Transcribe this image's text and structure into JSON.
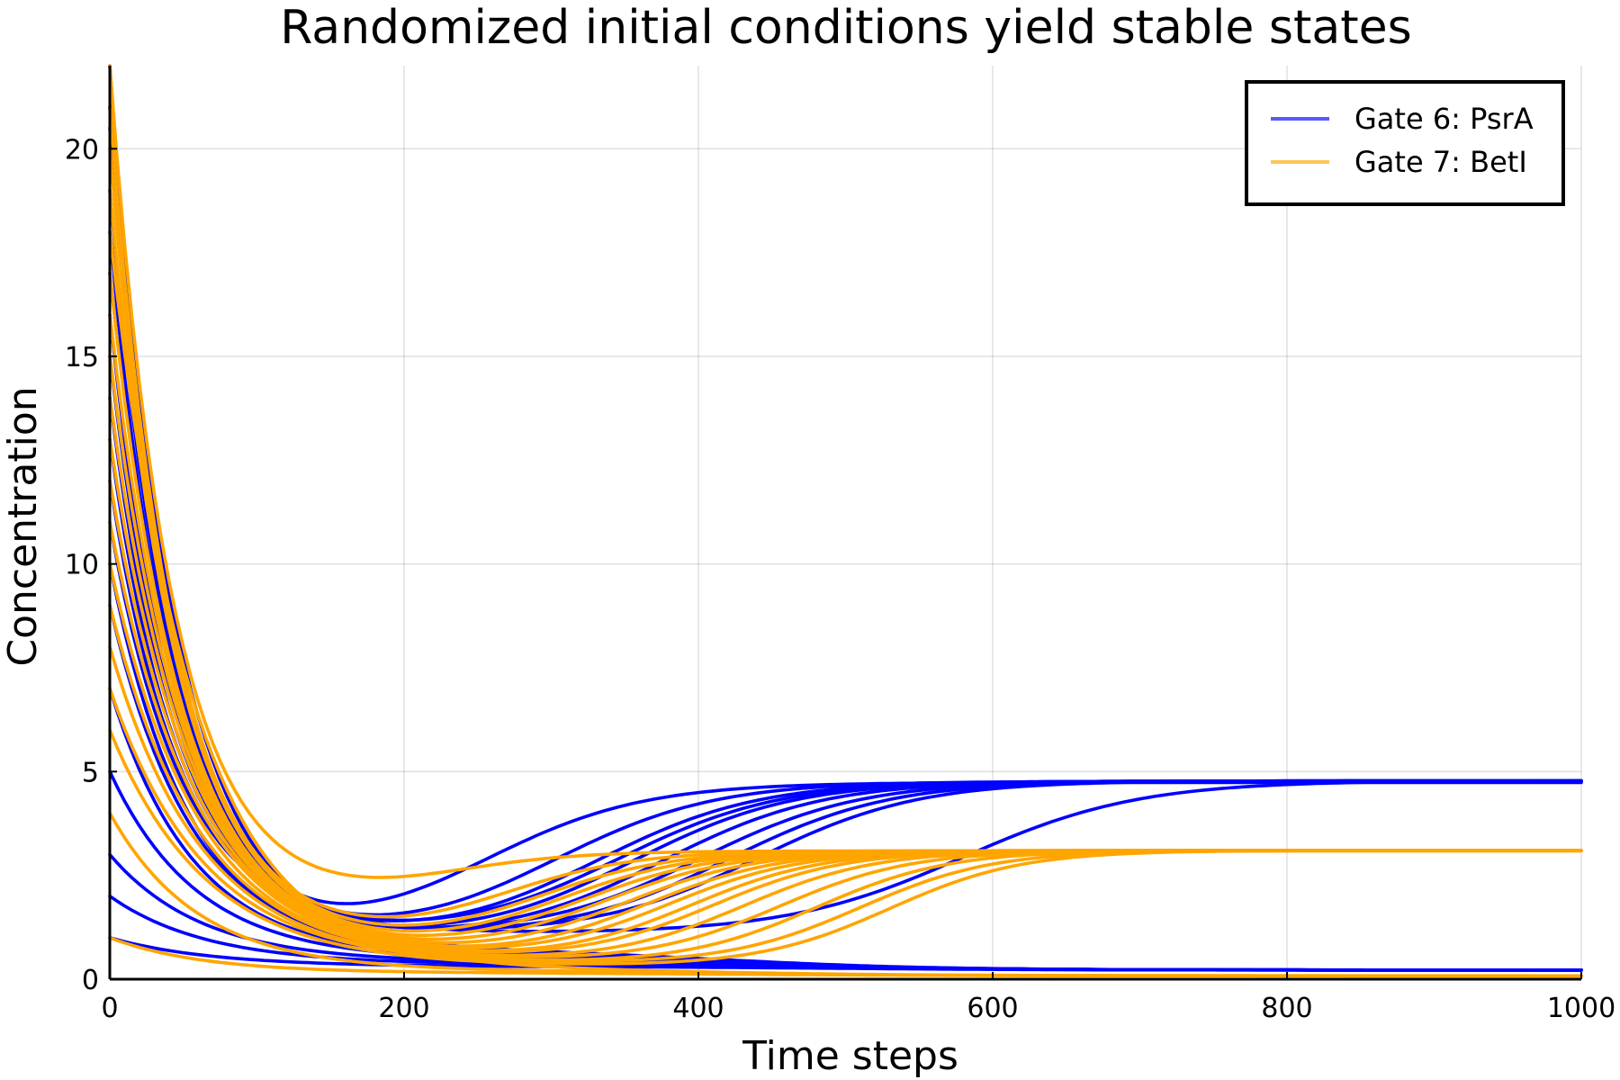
{
  "chart_data": {
    "type": "line",
    "title": "Randomized initial conditions yield stable states",
    "xlabel": "Time steps",
    "ylabel": "Concentration",
    "xlim": [
      0,
      1000
    ],
    "ylim": [
      0,
      22
    ],
    "xticks": [
      0,
      200,
      400,
      600,
      800,
      1000
    ],
    "yticks": [
      0,
      5,
      10,
      15,
      20
    ],
    "xtick_labels": [
      "0",
      "200",
      "400",
      "600",
      "800",
      "1000"
    ],
    "ytick_labels": [
      "0",
      "5",
      "10",
      "15",
      "20"
    ],
    "grid": true,
    "legend_position": "top-right",
    "series": [
      {
        "name": "Gate 6: PsrA",
        "color": "#0000ff",
        "trajectories": [
          {
            "y0": 22.0,
            "min": 0.8,
            "tmin": 130,
            "final": 4.78,
            "t_half": 250,
            "width": 55
          },
          {
            "y0": 20.5,
            "min": 0.9,
            "tmin": 135,
            "final": 4.78,
            "t_half": 300,
            "width": 55
          },
          {
            "y0": 19.0,
            "min": 0.9,
            "tmin": 140,
            "final": 4.78,
            "t_half": 330,
            "width": 55
          },
          {
            "y0": 18.0,
            "min": 1.0,
            "tmin": 140,
            "final": 4.78,
            "t_half": 345,
            "width": 55
          },
          {
            "y0": 16.0,
            "min": 0.9,
            "tmin": 145,
            "final": 4.78,
            "t_half": 355,
            "width": 55
          },
          {
            "y0": 15.0,
            "min": 0.9,
            "tmin": 150,
            "final": 4.78,
            "t_half": 375,
            "width": 55
          },
          {
            "y0": 14.0,
            "min": 1.0,
            "tmin": 150,
            "final": 4.78,
            "t_half": 400,
            "width": 55
          },
          {
            "y0": 12.0,
            "min": 1.0,
            "tmin": 155,
            "final": 4.78,
            "t_half": 420,
            "width": 55
          },
          {
            "y0": 11.0,
            "min": 1.05,
            "tmin": 160,
            "final": 4.78,
            "t_half": 440,
            "width": 55
          },
          {
            "y0": 13.0,
            "min": 1.1,
            "tmin": 150,
            "final": 4.78,
            "t_half": 580,
            "width": 60
          },
          {
            "y0": 21.0,
            "min": 0.7,
            "tmin": 150,
            "final": 0.22,
            "t_half": 420,
            "width": 70
          },
          {
            "y0": 17.0,
            "min": 0.6,
            "tmin": 160,
            "final": 0.22,
            "t_half": 430,
            "width": 70
          },
          {
            "y0": 10.0,
            "min": 0.55,
            "tmin": 170,
            "final": 0.22,
            "t_half": 440,
            "width": 70
          },
          {
            "y0": 9.0,
            "min": 0.5,
            "tmin": 180,
            "final": 0.22,
            "t_half": 450,
            "width": 70
          },
          {
            "y0": 7.0,
            "min": 0.5,
            "tmin": 180,
            "final": 0.22,
            "t_half": 460,
            "width": 70
          },
          {
            "y0": 5.0,
            "min": 0.45,
            "tmin": 190,
            "final": 0.22,
            "t_half": 470,
            "width": 70
          },
          {
            "y0": 3.0,
            "min": 0.4,
            "tmin": 200,
            "final": 0.22,
            "t_half": 480,
            "width": 70
          },
          {
            "y0": 2.0,
            "min": 0.35,
            "tmin": 210,
            "final": 0.22,
            "t_half": 490,
            "width": 70
          },
          {
            "y0": 1.0,
            "min": 0.3,
            "tmin": 220,
            "final": 0.22,
            "t_half": 500,
            "width": 70
          }
        ]
      },
      {
        "name": "Gate 7: BetI",
        "color": "#ffa500",
        "trajectories": [
          {
            "y0": 22.0,
            "min": 1.8,
            "tmin": 135,
            "final": 3.1,
            "t_half": 220,
            "width": 45
          },
          {
            "y0": 21.0,
            "min": 0.9,
            "tmin": 140,
            "final": 3.1,
            "t_half": 265,
            "width": 45
          },
          {
            "y0": 20.0,
            "min": 0.8,
            "tmin": 145,
            "final": 3.1,
            "t_half": 290,
            "width": 45
          },
          {
            "y0": 19.0,
            "min": 0.7,
            "tmin": 150,
            "final": 3.1,
            "t_half": 305,
            "width": 45
          },
          {
            "y0": 17.0,
            "min": 0.65,
            "tmin": 155,
            "final": 3.1,
            "t_half": 320,
            "width": 45
          },
          {
            "y0": 16.0,
            "min": 0.6,
            "tmin": 160,
            "final": 3.1,
            "t_half": 335,
            "width": 45
          },
          {
            "y0": 15.0,
            "min": 0.55,
            "tmin": 165,
            "final": 3.1,
            "t_half": 350,
            "width": 45
          },
          {
            "y0": 14.0,
            "min": 0.5,
            "tmin": 170,
            "final": 3.1,
            "t_half": 365,
            "width": 45
          },
          {
            "y0": 13.0,
            "min": 0.5,
            "tmin": 175,
            "final": 3.1,
            "t_half": 380,
            "width": 45
          },
          {
            "y0": 12.0,
            "min": 0.45,
            "tmin": 180,
            "final": 3.1,
            "t_half": 395,
            "width": 45
          },
          {
            "y0": 11.0,
            "min": 0.45,
            "tmin": 185,
            "final": 3.1,
            "t_half": 410,
            "width": 45
          },
          {
            "y0": 10.0,
            "min": 0.4,
            "tmin": 190,
            "final": 3.1,
            "t_half": 430,
            "width": 45
          },
          {
            "y0": 9.0,
            "min": 0.4,
            "tmin": 195,
            "final": 3.1,
            "t_half": 455,
            "width": 45
          },
          {
            "y0": 8.0,
            "min": 0.35,
            "tmin": 200,
            "final": 3.1,
            "t_half": 480,
            "width": 45
          },
          {
            "y0": 7.0,
            "min": 0.35,
            "tmin": 205,
            "final": 3.1,
            "t_half": 510,
            "width": 45
          },
          {
            "y0": 6.0,
            "min": 0.3,
            "tmin": 210,
            "final": 3.1,
            "t_half": 530,
            "width": 45
          },
          {
            "y0": 18.0,
            "min": 0.25,
            "tmin": 180,
            "final": 0.08,
            "t_half": 400,
            "width": 80
          },
          {
            "y0": 4.0,
            "min": 0.2,
            "tmin": 190,
            "final": 0.08,
            "t_half": 420,
            "width": 80
          },
          {
            "y0": 1.0,
            "min": 0.15,
            "tmin": 200,
            "final": 0.08,
            "t_half": 440,
            "width": 80
          }
        ]
      }
    ]
  }
}
